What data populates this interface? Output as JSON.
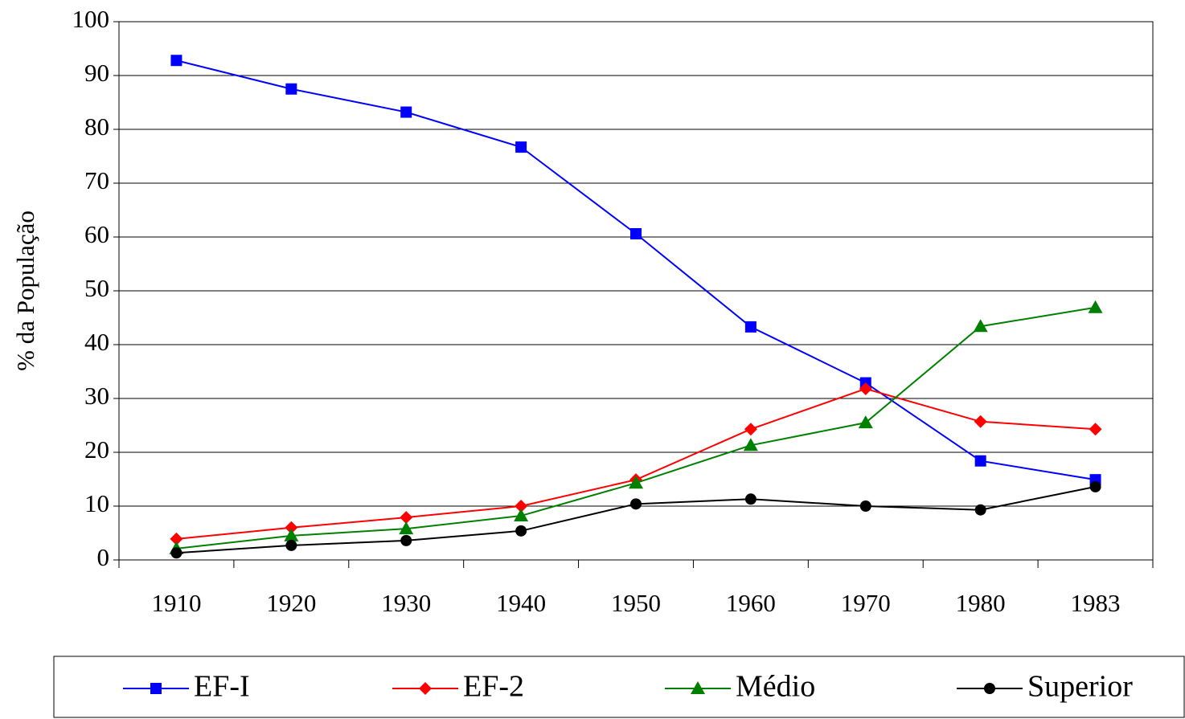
{
  "chart_data": {
    "type": "line",
    "ylabel": "% da População",
    "categories": [
      "1910",
      "1920",
      "1930",
      "1940",
      "1950",
      "1960",
      "1970",
      "1980",
      "1983"
    ],
    "series": [
      {
        "name": "EF-I",
        "color": "#0000ff",
        "marker": "square",
        "values": [
          92.8,
          87.5,
          83.2,
          76.7,
          60.6,
          43.3,
          32.9,
          18.4,
          14.9
        ]
      },
      {
        "name": "EF-2",
        "color": "#ff0000",
        "marker": "diamond",
        "values": [
          3.9,
          6.0,
          7.9,
          10.0,
          14.9,
          24.3,
          31.8,
          25.7,
          24.3
        ]
      },
      {
        "name": "Médio",
        "color": "#008000",
        "marker": "triangle",
        "values": [
          2.1,
          4.5,
          5.8,
          8.2,
          14.3,
          21.3,
          25.5,
          43.4,
          46.9
        ]
      },
      {
        "name": "Superior",
        "color": "#000000",
        "marker": "circle",
        "values": [
          1.3,
          2.7,
          3.6,
          5.4,
          10.4,
          11.3,
          10.0,
          9.3,
          13.6
        ]
      }
    ],
    "ylim": [
      0,
      100
    ],
    "yticks": [
      0,
      10,
      20,
      30,
      40,
      50,
      60,
      70,
      80,
      90,
      100
    ],
    "grid": true,
    "legend": "bottom"
  }
}
